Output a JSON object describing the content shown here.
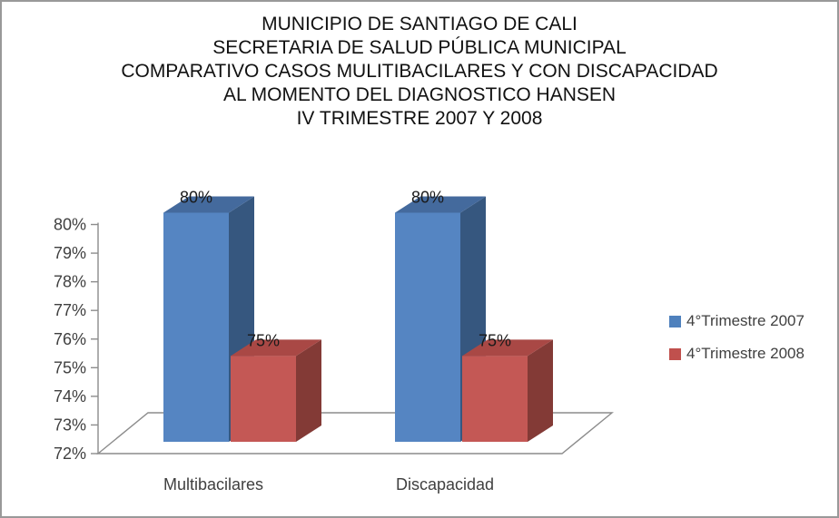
{
  "frame": {
    "border_color": "#999999",
    "background": "#ffffff"
  },
  "title": {
    "lines": [
      "MUNICIPIO DE SANTIAGO DE CALI",
      "SECRETARIA DE SALUD PÚBLICA MUNICIPAL",
      "COMPARATIVO CASOS MULITIBACILARES Y CON DISCAPACIDAD",
      "AL MOMENTO DEL DIAGNOSTICO HANSEN",
      "IV TRIMESTRE 2007 Y 2008"
    ]
  },
  "chart_data": {
    "type": "bar",
    "projection": "3d",
    "title": "MUNICIPIO DE SANTIAGO DE CALI SECRETARIA DE SALUD PÚBLICA MUNICIPAL COMPARATIVO CASOS MULITIBACILARES Y CON DISCAPACIDAD AL MOMENTO DEL DIAGNOSTICO HANSEN IV TRIMESTRE 2007 Y 2008",
    "categories": [
      "Multibacilares",
      "Discapacidad"
    ],
    "series": [
      {
        "name": "4°Trimestre 2007",
        "values": [
          80,
          80
        ],
        "data_labels": [
          "80%",
          "80%"
        ],
        "color_front": "#5585C2",
        "color_side": "#36577F",
        "color_top": "#446A9D",
        "legend_color": "#4F81BD"
      },
      {
        "name": "4°Trimestre 2008",
        "values": [
          75,
          75
        ],
        "data_labels": [
          "75%",
          "75%"
        ],
        "color_front": "#C45855",
        "color_side": "#833A36",
        "color_top": "#A94845",
        "legend_color": "#C0504D"
      }
    ],
    "xlabel": "",
    "ylabel": "",
    "ylim": [
      72,
      80
    ],
    "ytick_step": 1,
    "ytick_labels": [
      "72%",
      "73%",
      "74%",
      "75%",
      "76%",
      "77%",
      "78%",
      "79%",
      "80%"
    ],
    "grid": false,
    "legend_position": "right"
  },
  "colors": {
    "axis_line": "#8C8C8C",
    "label_text": "#404040",
    "data_label_text": "#1A1A1A"
  }
}
